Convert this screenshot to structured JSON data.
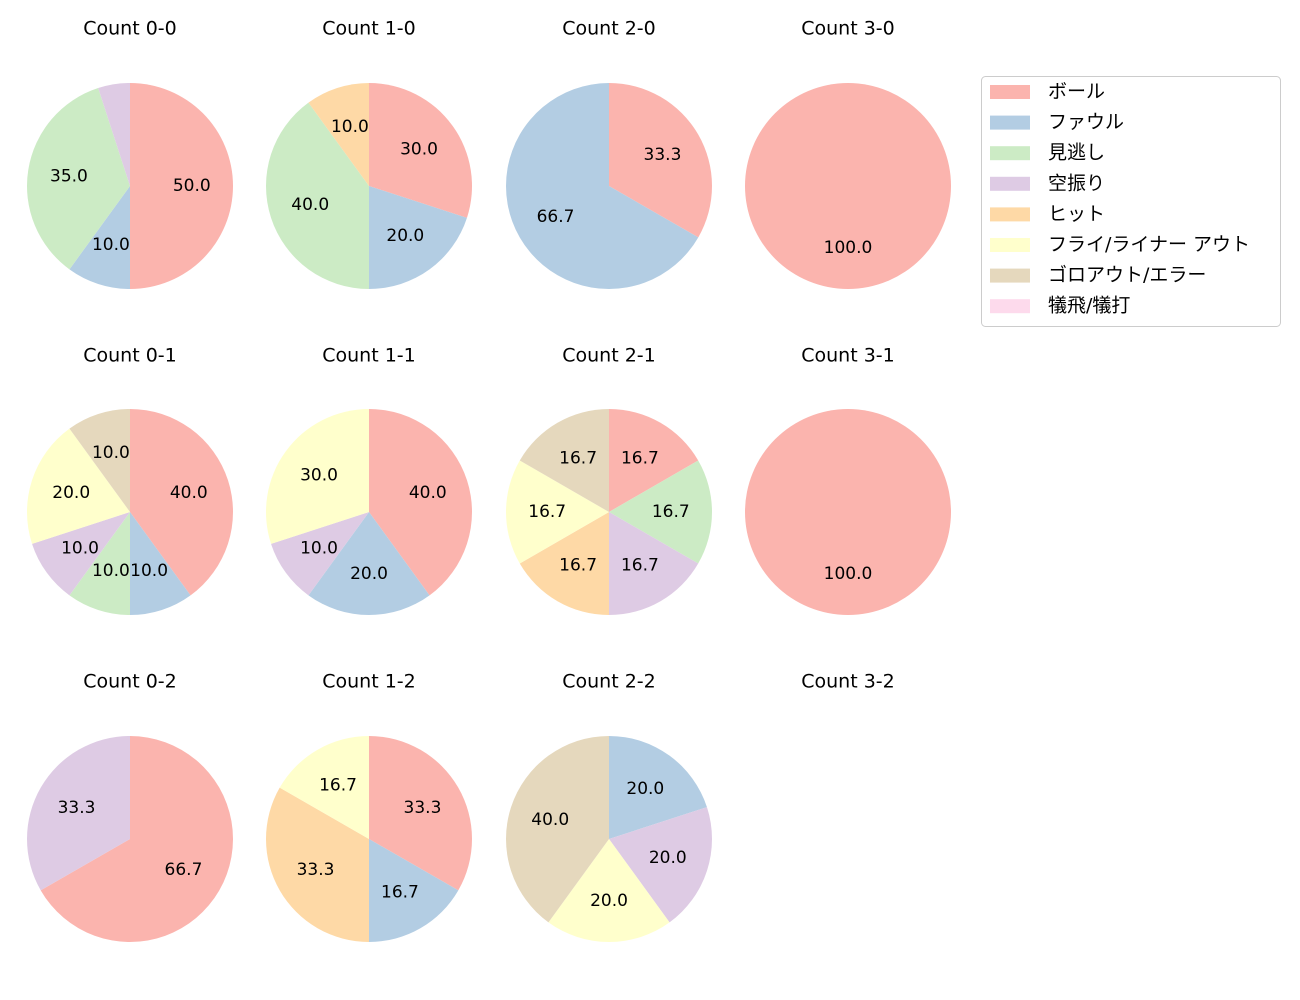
{
  "chart_data": [
    {
      "type": "pie",
      "title": "Count 0-0",
      "values": [
        50,
        10,
        35,
        5
      ],
      "value_labels": [
        "50.0",
        "10.0",
        "35.0",
        null
      ],
      "colors": [
        "#fbb4ae",
        "#b3cde3",
        "#ccebc5",
        "#decbe4"
      ]
    },
    {
      "type": "pie",
      "title": "Count 1-0",
      "values": [
        30,
        20,
        40,
        10
      ],
      "value_labels": [
        "30.0",
        "20.0",
        "40.0",
        "10.0"
      ],
      "colors": [
        "#fbb4ae",
        "#b3cde3",
        "#ccebc5",
        "#fed9a6"
      ]
    },
    {
      "type": "pie",
      "title": "Count 2-0",
      "values": [
        33.3,
        66.7
      ],
      "value_labels": [
        "33.3",
        "66.7"
      ],
      "colors": [
        "#fbb4ae",
        "#b3cde3"
      ]
    },
    {
      "type": "pie",
      "title": "Count 3-0",
      "values": [
        100
      ],
      "value_labels": [
        "100.0"
      ],
      "colors": [
        "#fbb4ae"
      ]
    },
    {
      "type": "pie",
      "title": "Count 0-1",
      "values": [
        40,
        10,
        10,
        10,
        20,
        10
      ],
      "value_labels": [
        "40.0",
        "10.0",
        "10.0",
        "10.0",
        "20.0",
        "10.0"
      ],
      "colors": [
        "#fbb4ae",
        "#b3cde3",
        "#ccebc5",
        "#decbe4",
        "#ffffcc",
        "#e5d8bd"
      ]
    },
    {
      "type": "pie",
      "title": "Count 1-1",
      "values": [
        40,
        20,
        10,
        30
      ],
      "value_labels": [
        "40.0",
        "20.0",
        "10.0",
        "30.0"
      ],
      "colors": [
        "#fbb4ae",
        "#b3cde3",
        "#decbe4",
        "#ffffcc"
      ]
    },
    {
      "type": "pie",
      "title": "Count 2-1",
      "values": [
        16.7,
        16.7,
        16.7,
        16.7,
        16.7,
        16.7
      ],
      "value_labels": [
        "16.7",
        "16.7",
        "16.7",
        "16.7",
        "16.7",
        "16.7"
      ],
      "colors": [
        "#fbb4ae",
        "#ccebc5",
        "#decbe4",
        "#fed9a6",
        "#ffffcc",
        "#e5d8bd"
      ]
    },
    {
      "type": "pie",
      "title": "Count 3-1",
      "values": [
        100
      ],
      "value_labels": [
        "100.0"
      ],
      "colors": [
        "#fbb4ae"
      ]
    },
    {
      "type": "pie",
      "title": "Count 0-2",
      "values": [
        66.7,
        33.3
      ],
      "value_labels": [
        "66.7",
        "33.3"
      ],
      "colors": [
        "#fbb4ae",
        "#decbe4"
      ]
    },
    {
      "type": "pie",
      "title": "Count 1-2",
      "values": [
        33.3,
        16.7,
        33.3,
        16.7
      ],
      "value_labels": [
        "33.3",
        "16.7",
        "33.3",
        "16.7"
      ],
      "colors": [
        "#fbb4ae",
        "#b3cde3",
        "#fed9a6",
        "#ffffcc"
      ]
    },
    {
      "type": "pie",
      "title": "Count 2-2",
      "values": [
        20,
        20,
        20,
        40
      ],
      "value_labels": [
        "20.0",
        "20.0",
        "20.0",
        "40.0"
      ],
      "colors": [
        "#b3cde3",
        "#decbe4",
        "#ffffcc",
        "#e5d8bd"
      ]
    },
    {
      "type": "pie",
      "title": "Count 3-2",
      "values": [],
      "value_labels": [],
      "colors": []
    }
  ],
  "legend": {
    "position": "upper right",
    "labels": [
      "ボール",
      "ファウル",
      "見逃し",
      "空振り",
      "ヒット",
      "フライ/ライナー アウト",
      "ゴロアウト/エラー",
      "犠飛/犠打"
    ],
    "colors": [
      "#fbb4ae",
      "#b3cde3",
      "#ccebc5",
      "#decbe4",
      "#fed9a6",
      "#ffffcc",
      "#e5d8bd",
      "#fddaec"
    ]
  }
}
